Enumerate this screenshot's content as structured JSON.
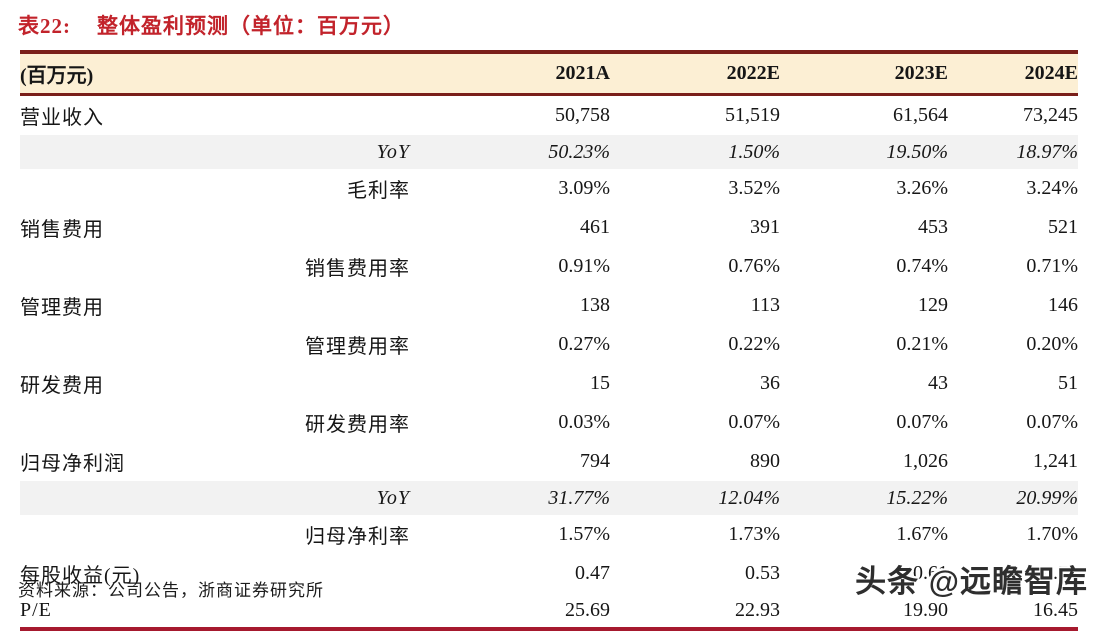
{
  "colors": {
    "title_red": "#C2232B",
    "border_dark_maroon": "#7A1F1A",
    "border_bottom_red": "#A6192E",
    "header_bg": "#FCEFD4",
    "shaded_row_bg": "#F2F2F2"
  },
  "title": {
    "prefix": "表22:",
    "caption": "整体盈利预测（单位：百万元）"
  },
  "table": {
    "header": [
      "(百万元)",
      "2021A",
      "2022E",
      "2023E",
      "2024E"
    ],
    "rows": [
      {
        "label": "营业收入",
        "type": "main",
        "values": [
          "50,758",
          "51,519",
          "61,564",
          "73,245"
        ]
      },
      {
        "label": "YoY",
        "type": "sub-italic-shaded",
        "values": [
          "50.23%",
          "1.50%",
          "19.50%",
          "18.97%"
        ]
      },
      {
        "label": "毛利率",
        "type": "sub",
        "values": [
          "3.09%",
          "3.52%",
          "3.26%",
          "3.24%"
        ]
      },
      {
        "label": "销售费用",
        "type": "main",
        "values": [
          "461",
          "391",
          "453",
          "521"
        ]
      },
      {
        "label": "销售费用率",
        "type": "sub",
        "values": [
          "0.91%",
          "0.76%",
          "0.74%",
          "0.71%"
        ]
      },
      {
        "label": "管理费用",
        "type": "main",
        "values": [
          "138",
          "113",
          "129",
          "146"
        ]
      },
      {
        "label": "管理费用率",
        "type": "sub",
        "values": [
          "0.27%",
          "0.22%",
          "0.21%",
          "0.20%"
        ]
      },
      {
        "label": "研发费用",
        "type": "main",
        "values": [
          "15",
          "36",
          "43",
          "51"
        ]
      },
      {
        "label": "研发费用率",
        "type": "sub",
        "values": [
          "0.03%",
          "0.07%",
          "0.07%",
          "0.07%"
        ]
      },
      {
        "label": "归母净利润",
        "type": "main",
        "values": [
          "794",
          "890",
          "1,026",
          "1,241"
        ]
      },
      {
        "label": "YoY",
        "type": "sub-italic-shaded",
        "values": [
          "31.77%",
          "12.04%",
          "15.22%",
          "20.99%"
        ]
      },
      {
        "label": "归母净利率",
        "type": "sub",
        "values": [
          "1.57%",
          "1.73%",
          "1.67%",
          "1.70%"
        ]
      },
      {
        "label": "每股收益(元)",
        "type": "main",
        "values": [
          "0.47",
          "0.53",
          "0.61",
          "0.74"
        ]
      },
      {
        "label": "P/E",
        "type": "main",
        "values": [
          "25.69",
          "22.93",
          "19.90",
          "16.45"
        ]
      }
    ]
  },
  "footer": {
    "source": "资料来源：公司公告，浙商证券研究所"
  },
  "watermark": {
    "text": "头条 @远瞻智库"
  }
}
